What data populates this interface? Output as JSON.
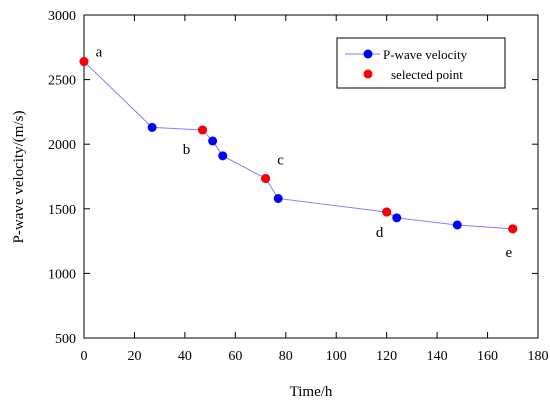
{
  "chart_data": {
    "type": "line",
    "xlabel": "Time/h",
    "ylabel": "P-wave velocity/(m/s)",
    "xlim": [
      0,
      180
    ],
    "ylim": [
      500,
      3000
    ],
    "x_ticks": [
      0,
      20,
      40,
      60,
      80,
      100,
      120,
      140,
      160,
      180
    ],
    "y_ticks": [
      500,
      1000,
      1500,
      2000,
      2500,
      3000
    ],
    "grid": false,
    "legend_position": "top-right",
    "series": [
      {
        "name": "P-wave velocity",
        "color": "#0000ff",
        "line_color": "#8080ff",
        "marker": "circle",
        "points": [
          {
            "x": 0,
            "y": 2640
          },
          {
            "x": 27,
            "y": 2130
          },
          {
            "x": 47,
            "y": 2110
          },
          {
            "x": 51,
            "y": 2025
          },
          {
            "x": 55,
            "y": 1910
          },
          {
            "x": 72,
            "y": 1735
          },
          {
            "x": 77,
            "y": 1580
          },
          {
            "x": 120,
            "y": 1475
          },
          {
            "x": 124,
            "y": 1430
          },
          {
            "x": 148,
            "y": 1375
          },
          {
            "x": 170,
            "y": 1345
          }
        ]
      },
      {
        "name": "selected point",
        "color": "#ff0000",
        "marker": "circle",
        "line": false,
        "points": [
          {
            "x": 0,
            "y": 2640,
            "label": "a"
          },
          {
            "x": 47,
            "y": 2110,
            "label": "b"
          },
          {
            "x": 72,
            "y": 1735,
            "label": "c"
          },
          {
            "x": 120,
            "y": 1475,
            "label": "d"
          },
          {
            "x": 170,
            "y": 1345,
            "label": "e"
          }
        ]
      }
    ]
  }
}
